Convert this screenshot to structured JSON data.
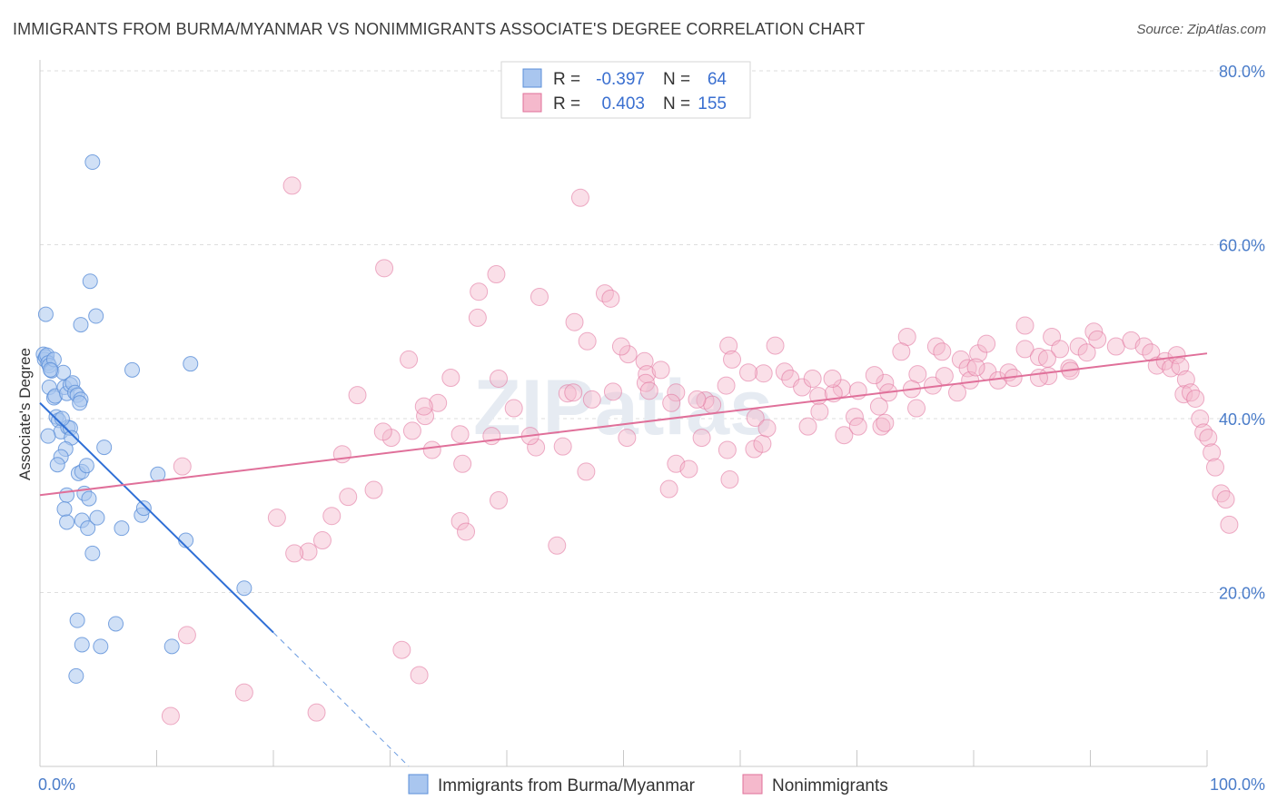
{
  "title": "IMMIGRANTS FROM BURMA/MYANMAR VS NONIMMIGRANTS ASSOCIATE'S DEGREE CORRELATION CHART",
  "source": "Source: ZipAtlas.com",
  "watermark": "ZIPatlas",
  "colors": {
    "blue": "#5b8fd8",
    "blue_fill": "#a9c6ef",
    "pink": "#e0709a",
    "pink_fill": "#f5b9cc",
    "grid": "#dedede",
    "tick_text": "#4a7cc9"
  },
  "stats_legend": [
    {
      "series": "Immigrants from Burma/Myanmar",
      "r_label": "R =",
      "r_value": "-0.397",
      "n_label": "N =",
      "n_value": "64"
    },
    {
      "series": "Nonimmigrants",
      "r_label": "R =",
      "r_value": "0.403",
      "n_label": "N =",
      "n_value": "155"
    }
  ],
  "chart_data": {
    "type": "scatter",
    "title": "IMMIGRANTS FROM BURMA/MYANMAR VS NONIMMIGRANTS ASSOCIATE'S DEGREE CORRELATION CHART",
    "xlabel": "",
    "ylabel": "Associate's Degree",
    "xlim": [
      0,
      100
    ],
    "ylim": [
      0,
      80
    ],
    "x_tick_labels": [
      "0.0%",
      "100.0%"
    ],
    "y_tick_labels": [
      "20.0%",
      "40.0%",
      "60.0%",
      "80.0%"
    ],
    "y_ticks": [
      20,
      40,
      60,
      80
    ],
    "grid": true,
    "legend_position": "bottom",
    "series": [
      {
        "name": "Immigrants from Burma/Myanmar",
        "color": "#5b8fd8",
        "trend": {
          "x": [
            0,
            20.0
          ],
          "y": [
            41.8,
            15.4
          ],
          "dashed_to": [
            31.6,
            0
          ]
        },
        "points": [
          [
            0.3,
            47.4
          ],
          [
            0.4,
            46.8
          ],
          [
            0.5,
            47.1
          ],
          [
            0.6,
            47.3
          ],
          [
            0.7,
            46.4
          ],
          [
            0.8,
            46.1
          ],
          [
            1.0,
            45.5
          ],
          [
            1.2,
            46.8
          ],
          [
            0.5,
            52.0
          ],
          [
            0.8,
            43.6
          ],
          [
            1.2,
            42.4
          ],
          [
            1.3,
            42.6
          ],
          [
            1.4,
            40.2
          ],
          [
            1.6,
            39.8
          ],
          [
            1.8,
            38.5
          ],
          [
            0.7,
            38.0
          ],
          [
            2.0,
            45.3
          ],
          [
            2.1,
            43.6
          ],
          [
            2.3,
            42.9
          ],
          [
            2.6,
            43.9
          ],
          [
            2.8,
            44.1
          ],
          [
            3.0,
            43.0
          ],
          [
            3.2,
            42.7
          ],
          [
            3.5,
            42.2
          ],
          [
            3.4,
            41.8
          ],
          [
            2.4,
            39.0
          ],
          [
            2.6,
            38.9
          ],
          [
            2.7,
            37.8
          ],
          [
            2.2,
            36.5
          ],
          [
            1.8,
            35.6
          ],
          [
            1.5,
            34.7
          ],
          [
            3.3,
            33.7
          ],
          [
            3.6,
            33.9
          ],
          [
            4.0,
            34.6
          ],
          [
            2.3,
            31.2
          ],
          [
            3.8,
            31.4
          ],
          [
            4.2,
            30.8
          ],
          [
            5.5,
            36.7
          ],
          [
            2.1,
            29.6
          ],
          [
            2.3,
            28.1
          ],
          [
            3.6,
            28.3
          ],
          [
            4.1,
            27.4
          ],
          [
            4.9,
            28.6
          ],
          [
            7.0,
            27.4
          ],
          [
            8.7,
            28.9
          ],
          [
            8.9,
            29.7
          ],
          [
            4.5,
            24.5
          ],
          [
            10.1,
            33.6
          ],
          [
            12.5,
            26.0
          ],
          [
            17.5,
            20.5
          ],
          [
            3.2,
            16.8
          ],
          [
            6.5,
            16.4
          ],
          [
            3.6,
            14.0
          ],
          [
            5.2,
            13.8
          ],
          [
            11.3,
            13.8
          ],
          [
            3.1,
            10.4
          ],
          [
            4.5,
            69.5
          ],
          [
            4.3,
            55.8
          ],
          [
            3.5,
            50.8
          ],
          [
            4.8,
            51.8
          ],
          [
            7.9,
            45.6
          ],
          [
            12.9,
            46.3
          ],
          [
            0.9,
            45.6
          ],
          [
            1.9,
            40.0
          ]
        ]
      },
      {
        "name": "Nonimmigrants",
        "color": "#e0709a",
        "trend": {
          "x": [
            0,
            100
          ],
          "y": [
            31.2,
            47.5
          ]
        },
        "points": [
          [
            21.6,
            66.8
          ],
          [
            46.3,
            65.4
          ],
          [
            29.5,
            57.3
          ],
          [
            39.1,
            56.6
          ],
          [
            37.6,
            54.6
          ],
          [
            42.8,
            54.0
          ],
          [
            48.4,
            54.4
          ],
          [
            48.9,
            53.8
          ],
          [
            37.5,
            51.6
          ],
          [
            45.8,
            51.1
          ],
          [
            46.9,
            48.9
          ],
          [
            31.6,
            46.8
          ],
          [
            35.2,
            44.7
          ],
          [
            39.3,
            44.6
          ],
          [
            45.2,
            42.9
          ],
          [
            49.1,
            43.1
          ],
          [
            50.4,
            47.4
          ],
          [
            51.8,
            46.6
          ],
          [
            52.0,
            45.1
          ],
          [
            51.9,
            44.1
          ],
          [
            54.5,
            43.0
          ],
          [
            54.1,
            41.8
          ],
          [
            57.0,
            42.1
          ],
          [
            57.6,
            41.6
          ],
          [
            59.0,
            48.4
          ],
          [
            59.3,
            46.8
          ],
          [
            62.0,
            45.2
          ],
          [
            63.8,
            45.4
          ],
          [
            64.3,
            44.6
          ],
          [
            65.3,
            43.6
          ],
          [
            66.2,
            44.6
          ],
          [
            68.7,
            43.5
          ],
          [
            70.1,
            43.2
          ],
          [
            71.9,
            41.4
          ],
          [
            72.4,
            44.1
          ],
          [
            72.7,
            43.0
          ],
          [
            74.3,
            49.4
          ],
          [
            73.8,
            47.7
          ],
          [
            75.2,
            45.1
          ],
          [
            76.8,
            48.3
          ],
          [
            77.3,
            47.7
          ],
          [
            78.9,
            46.8
          ],
          [
            79.5,
            45.8
          ],
          [
            80.4,
            47.5
          ],
          [
            81.1,
            48.6
          ],
          [
            81.2,
            45.4
          ],
          [
            82.1,
            44.4
          ],
          [
            83.0,
            45.3
          ],
          [
            84.4,
            48.0
          ],
          [
            84.4,
            50.7
          ],
          [
            85.6,
            47.1
          ],
          [
            86.7,
            49.4
          ],
          [
            87.4,
            48.0
          ],
          [
            89.0,
            48.3
          ],
          [
            88.2,
            45.8
          ],
          [
            89.7,
            47.6
          ],
          [
            90.3,
            50.0
          ],
          [
            90.6,
            49.1
          ],
          [
            92.2,
            48.3
          ],
          [
            93.5,
            49.0
          ],
          [
            94.6,
            48.3
          ],
          [
            95.2,
            47.6
          ],
          [
            95.7,
            46.1
          ],
          [
            96.4,
            46.6
          ],
          [
            96.9,
            45.8
          ],
          [
            97.4,
            47.3
          ],
          [
            97.7,
            46.0
          ],
          [
            98.2,
            44.5
          ],
          [
            98.0,
            42.8
          ],
          [
            98.6,
            43.0
          ],
          [
            99.0,
            42.3
          ],
          [
            99.4,
            40.0
          ],
          [
            99.7,
            38.4
          ],
          [
            100.1,
            37.8
          ],
          [
            100.4,
            36.1
          ],
          [
            100.7,
            34.4
          ],
          [
            101.2,
            31.4
          ],
          [
            101.6,
            30.7
          ],
          [
            101.9,
            27.8
          ],
          [
            34.1,
            41.8
          ],
          [
            31.9,
            38.6
          ],
          [
            30.1,
            37.8
          ],
          [
            33.6,
            36.4
          ],
          [
            36.2,
            34.8
          ],
          [
            25.9,
            35.9
          ],
          [
            26.4,
            31.0
          ],
          [
            25.0,
            28.8
          ],
          [
            24.2,
            26.0
          ],
          [
            23.0,
            24.7
          ],
          [
            21.8,
            24.5
          ],
          [
            20.3,
            28.6
          ],
          [
            28.6,
            31.8
          ],
          [
            36.0,
            28.2
          ],
          [
            36.5,
            27.0
          ],
          [
            39.3,
            30.6
          ],
          [
            40.6,
            41.2
          ],
          [
            42.5,
            36.7
          ],
          [
            44.8,
            36.8
          ],
          [
            45.7,
            43.0
          ],
          [
            44.3,
            25.4
          ],
          [
            46.8,
            33.9
          ],
          [
            50.3,
            37.8
          ],
          [
            52.2,
            43.2
          ],
          [
            54.5,
            34.8
          ],
          [
            53.9,
            31.9
          ],
          [
            55.6,
            34.2
          ],
          [
            56.7,
            37.8
          ],
          [
            56.3,
            42.2
          ],
          [
            58.9,
            36.4
          ],
          [
            59.1,
            33.0
          ],
          [
            61.3,
            40.1
          ],
          [
            61.2,
            36.5
          ],
          [
            61.9,
            37.1
          ],
          [
            62.3,
            38.9
          ],
          [
            65.8,
            39.1
          ],
          [
            66.7,
            42.6
          ],
          [
            68.0,
            42.9
          ],
          [
            68.9,
            38.1
          ],
          [
            69.8,
            40.2
          ],
          [
            70.1,
            39.1
          ],
          [
            72.1,
            39.1
          ],
          [
            72.4,
            39.5
          ],
          [
            75.1,
            41.2
          ],
          [
            76.5,
            43.8
          ],
          [
            79.7,
            44.4
          ],
          [
            83.4,
            44.7
          ],
          [
            86.4,
            44.9
          ],
          [
            88.3,
            45.5
          ],
          [
            36.0,
            38.2
          ],
          [
            42.0,
            38.0
          ],
          [
            38.7,
            38.0
          ],
          [
            33.0,
            40.3
          ],
          [
            29.4,
            38.5
          ],
          [
            32.9,
            41.4
          ],
          [
            27.2,
            42.7
          ],
          [
            12.2,
            34.5
          ],
          [
            11.2,
            5.8
          ],
          [
            12.6,
            15.1
          ],
          [
            17.5,
            8.5
          ],
          [
            23.7,
            6.2
          ],
          [
            31.0,
            13.4
          ],
          [
            32.5,
            10.5
          ],
          [
            47.3,
            42.2
          ],
          [
            49.8,
            48.3
          ],
          [
            53.2,
            45.6
          ],
          [
            58.8,
            43.8
          ],
          [
            60.7,
            45.3
          ],
          [
            63.0,
            48.4
          ],
          [
            66.8,
            40.8
          ],
          [
            67.9,
            44.6
          ],
          [
            71.5,
            45.0
          ],
          [
            74.7,
            43.4
          ],
          [
            77.5,
            44.9
          ],
          [
            78.6,
            43.0
          ],
          [
            80.2,
            45.9
          ],
          [
            85.6,
            44.7
          ],
          [
            86.3,
            46.9
          ]
        ]
      }
    ]
  },
  "bottom_legend": [
    {
      "label": "Immigrants from Burma/Myanmar"
    },
    {
      "label": "Nonimmigrants"
    }
  ]
}
